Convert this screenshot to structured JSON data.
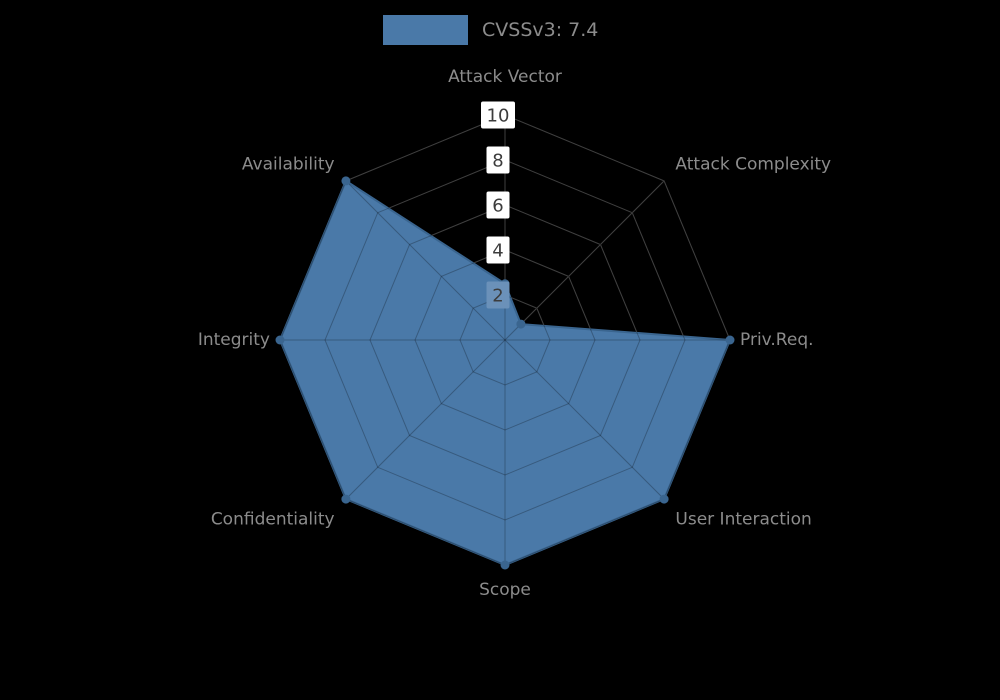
{
  "page": {
    "background": "#000000"
  },
  "legend": {
    "label": "CVSSv3: 7.4",
    "swatch_color": "#4a79a8"
  },
  "chart_data": {
    "type": "radar",
    "title": "",
    "categories": [
      "Attack Vector",
      "Attack Complexity",
      "Priv.Req.",
      "User Interaction",
      "Scope",
      "Confidentiality",
      "Integrity",
      "Availability"
    ],
    "series": [
      {
        "name": "CVSSv3: 7.4",
        "color": "#4a79a8",
        "edge_color": "#3a658f",
        "values": [
          2.5,
          1.0,
          10,
          10,
          10,
          10,
          10,
          10
        ]
      }
    ],
    "radial_ticks": [
      2,
      4,
      6,
      8,
      10
    ],
    "r_max": 10,
    "start_angle_deg": 90,
    "direction": "clockwise",
    "grid": true,
    "legend_position": "top",
    "grid_color": "#555555",
    "tick_box_color": "#ffffff",
    "tick_box_over_fill_color": "#6b91b9",
    "label_color": "#8c8c8c"
  }
}
